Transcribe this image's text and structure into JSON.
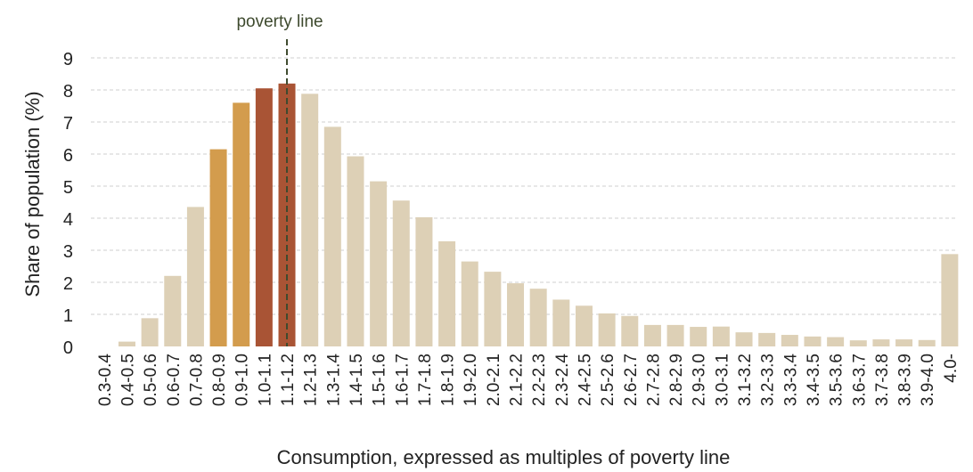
{
  "chart_data": {
    "type": "bar",
    "title": "",
    "xlabel": "Consumption, expressed as multiples of poverty line",
    "ylabel": "Share of population (%)",
    "ylim": [
      0,
      9
    ],
    "yticks": [
      0,
      1,
      2,
      3,
      4,
      5,
      6,
      7,
      8,
      9
    ],
    "grid": "horizontal-dashed",
    "categories": [
      "0.3-0.4",
      "0.4-0.5",
      "0.5-0.6",
      "0.6-0.7",
      "0.7-0.8",
      "0.8-0.9",
      "0.9-1.0",
      "1.0-1.1",
      "1.1-1.2",
      "1.2-1.3",
      "1.3-1.4",
      "1.4-1.5",
      "1.5-1.6",
      "1.6-1.7",
      "1.7-1.8",
      "1.8-1.9",
      "1.9-2.0",
      "2.0-2.1",
      "2.1-2.2",
      "2.2-2.3",
      "2.3-2.4",
      "2.4-2.5",
      "2.5-2.6",
      "2.6-2.7",
      "2.7-2.8",
      "2.8-2.9",
      "2.9-3.0",
      "3.0-3.1",
      "3.1-3.2",
      "3.2-3.3",
      "3.3-3.4",
      "3.4-3.5",
      "3.5-3.6",
      "3.6-3.7",
      "3.7-3.8",
      "3.8-3.9",
      "3.9-4.0",
      "4.0-"
    ],
    "values": [
      0,
      0.15,
      0.88,
      2.2,
      4.35,
      6.15,
      7.6,
      8.05,
      8.2,
      7.88,
      6.85,
      5.93,
      5.15,
      4.55,
      4.03,
      3.28,
      2.65,
      2.33,
      1.97,
      1.8,
      1.46,
      1.27,
      1.03,
      0.95,
      0.67,
      0.67,
      0.61,
      0.62,
      0.44,
      0.42,
      0.36,
      0.31,
      0.29,
      0.19,
      0.22,
      0.22,
      0.2,
      2.88
    ],
    "colors": {
      "default": "#ddd0b6",
      "highlight": {
        "0.8-0.9": "#d39c4d",
        "0.9-1.0": "#d39c4d",
        "1.0-1.1": "#a95435",
        "1.1-1.2": "#a95435"
      },
      "poverty_line": "#3e4a2e",
      "grid": "#cfcfcf"
    },
    "annotations": [
      {
        "text": "poverty line",
        "at": 1.1
      }
    ]
  }
}
